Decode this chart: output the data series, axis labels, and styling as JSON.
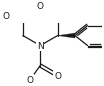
{
  "bg_color": "#ffffff",
  "line_color": "#1a1a1a",
  "lw": 0.9,
  "fs": 6.5,
  "scale": 28,
  "ox": 38,
  "oy": 52
}
